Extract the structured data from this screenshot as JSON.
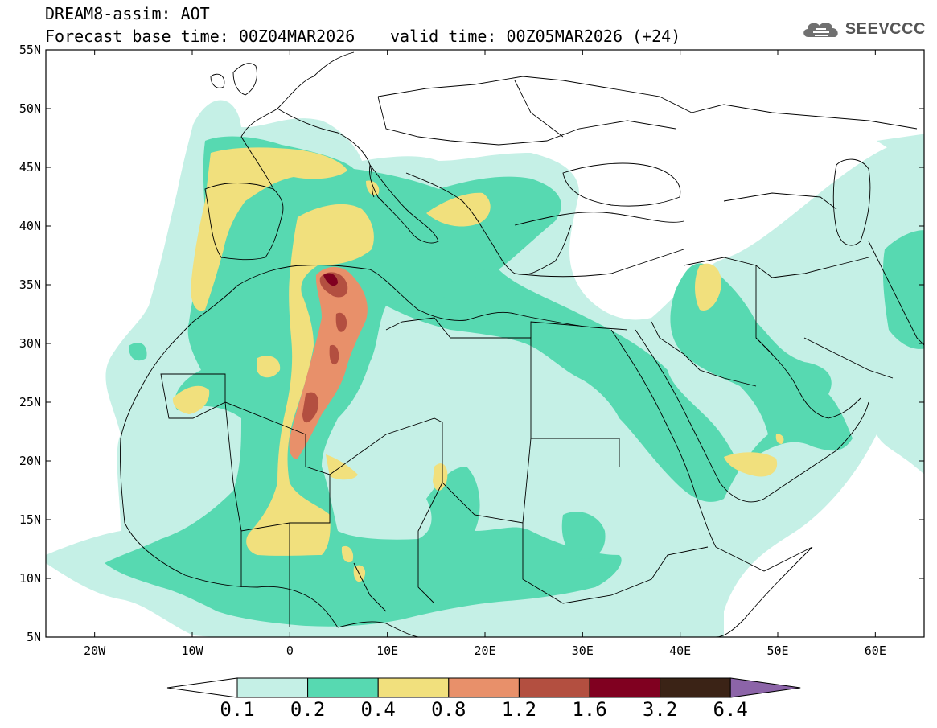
{
  "title": {
    "line1": "DREAM8-assim: AOT",
    "line2a": "Forecast base time: 00Z04MAR2026",
    "line2b": "valid time: 00Z05MAR2026 (+24)"
  },
  "logo": {
    "icon": "cloud-icon",
    "text": "SEEVCCC"
  },
  "map": {
    "lon_range": [
      -25,
      65
    ],
    "lat_range": [
      5,
      55
    ],
    "x_ticks": [
      "20W",
      "10W",
      "0",
      "10E",
      "20E",
      "30E",
      "40E",
      "50E",
      "60E"
    ],
    "x_tick_values": [
      -20,
      -10,
      0,
      10,
      20,
      30,
      40,
      50,
      60
    ],
    "y_ticks": [
      "55N",
      "50N",
      "45N",
      "40N",
      "35N",
      "30N",
      "25N",
      "20N",
      "15N",
      "10N",
      "5N"
    ],
    "y_tick_values": [
      55,
      50,
      45,
      40,
      35,
      30,
      25,
      20,
      15,
      10,
      5
    ]
  },
  "colorbar": {
    "colors": [
      "#ffffff",
      "#c5f0e6",
      "#57d9b1",
      "#f1e07d",
      "#e8906a",
      "#b34f40",
      "#800020",
      "#3b2316",
      "#8c64a8"
    ],
    "labels": [
      "0.1",
      "0.2",
      "0.4",
      "0.8",
      "1.2",
      "1.6",
      "3.2",
      "6.4"
    ]
  }
}
